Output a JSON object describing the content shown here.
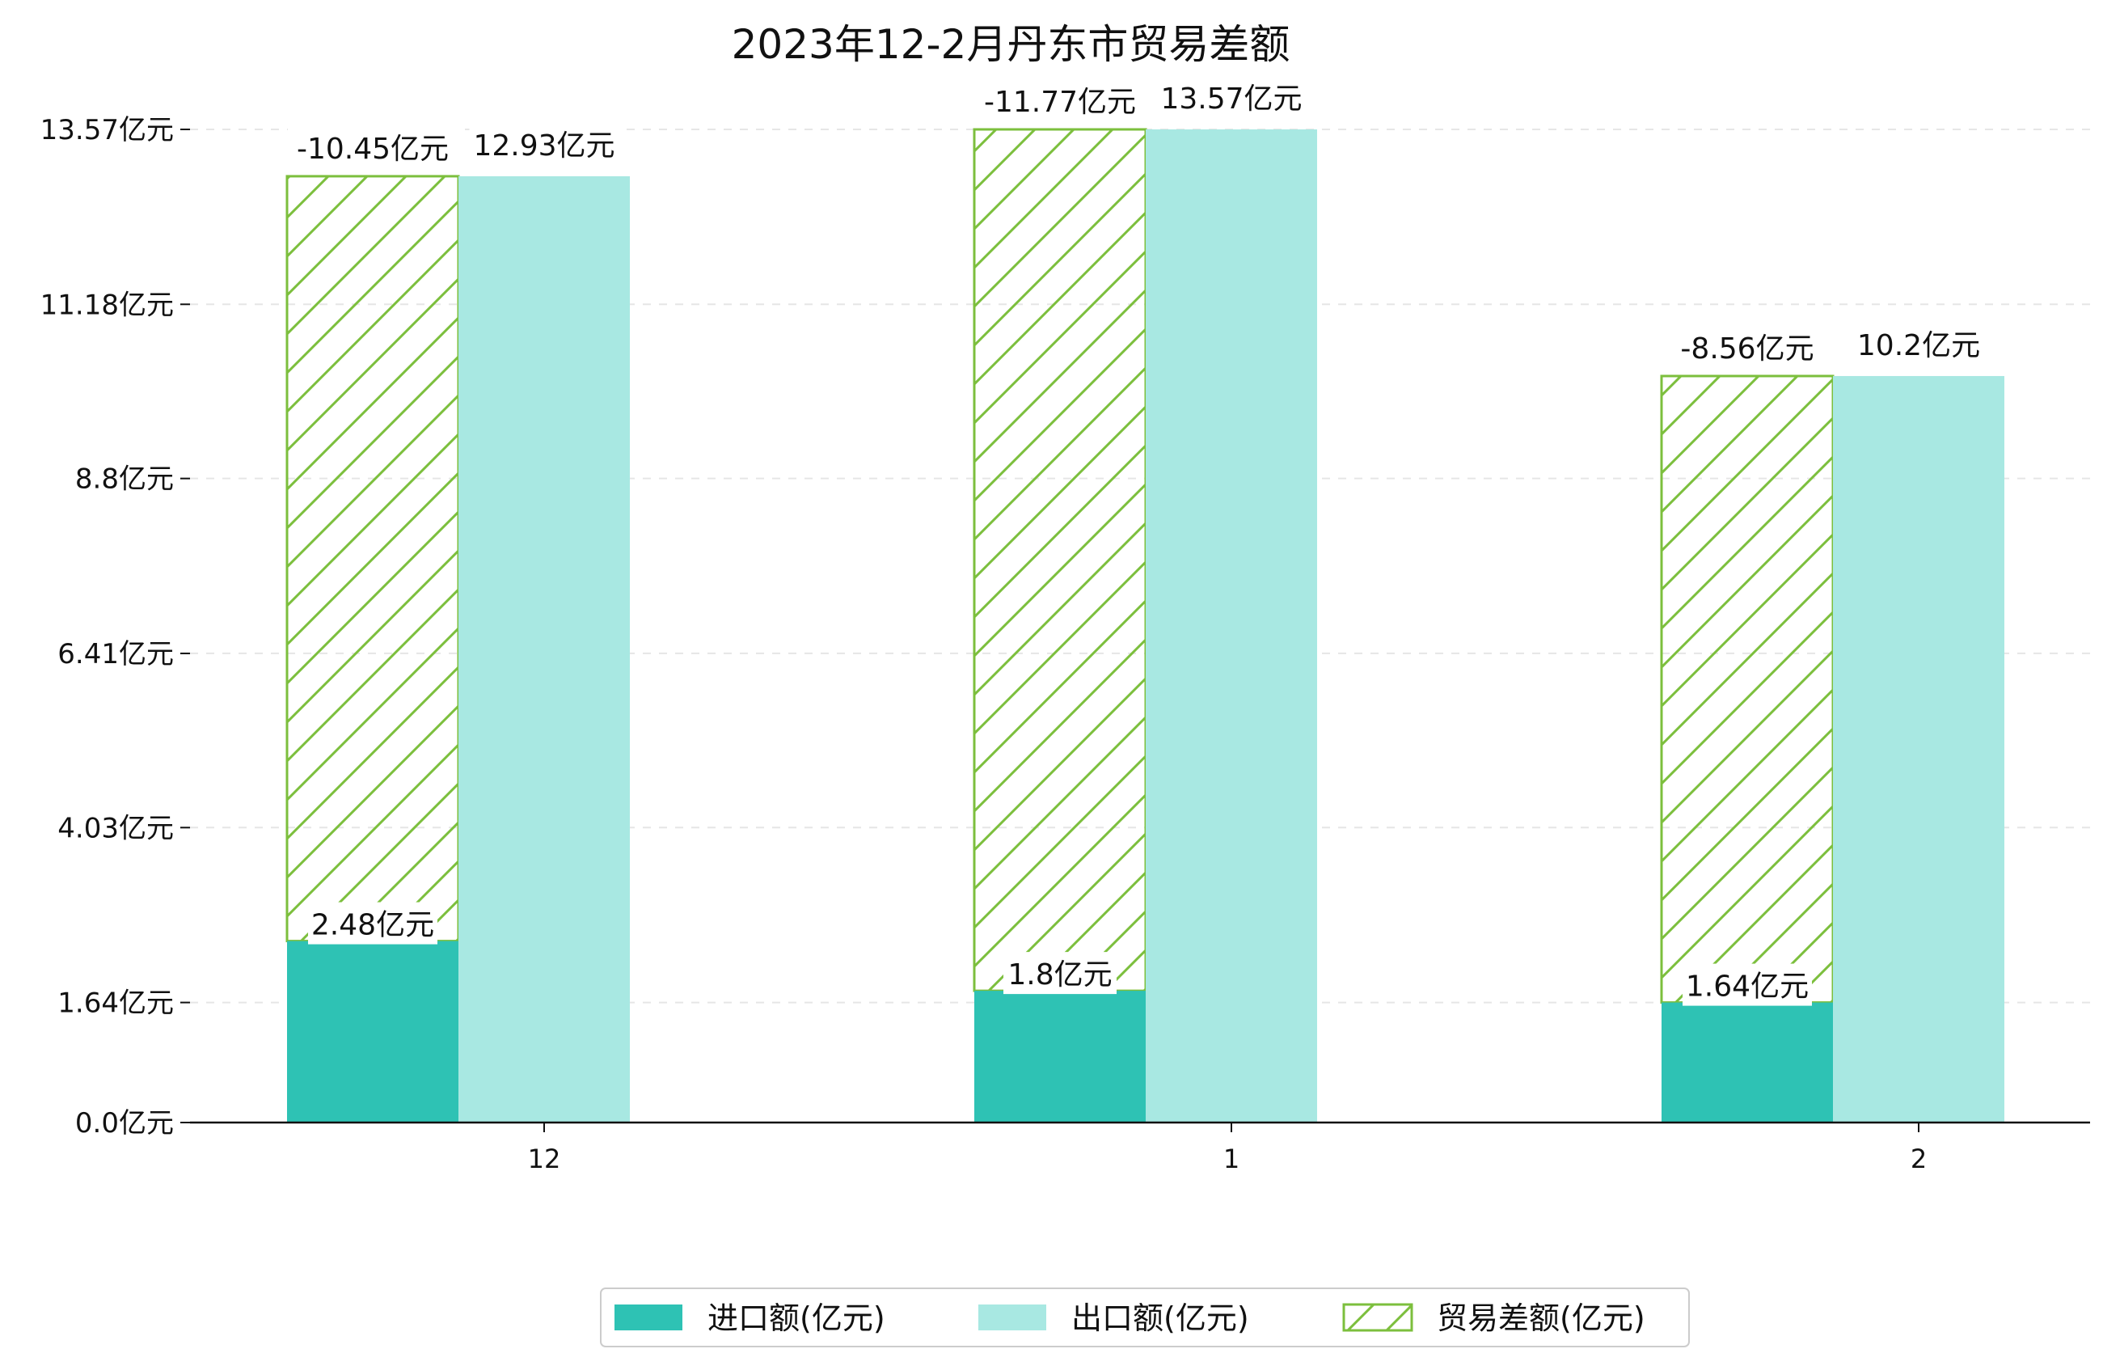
{
  "chart_data": {
    "type": "bar",
    "title": "2023年12-2月丹东市贸易差额",
    "xlabel": "",
    "ylabel": "",
    "categories": [
      "12",
      "1",
      "2"
    ],
    "ylim": [
      0,
      13.57
    ],
    "yticks": [
      {
        "value": 0.0,
        "label": "0.0亿元"
      },
      {
        "value": 1.64,
        "label": "1.64亿元"
      },
      {
        "value": 4.03,
        "label": "4.03亿元"
      },
      {
        "value": 6.41,
        "label": "6.41亿元"
      },
      {
        "value": 8.8,
        "label": "8.8亿元"
      },
      {
        "value": 11.18,
        "label": "11.18亿元"
      },
      {
        "value": 13.57,
        "label": "13.57亿元"
      }
    ],
    "grid": "horizontal-dashed",
    "legend_position": "bottom-center",
    "series": [
      {
        "name": "进口额(亿元)",
        "color": "#2ec2b4",
        "values": [
          2.48,
          1.8,
          1.64
        ],
        "labels": [
          "2.48亿元",
          "1.8亿元",
          "1.64亿元"
        ]
      },
      {
        "name": "出口额(亿元)",
        "color": "#a8e8e2",
        "values": [
          12.93,
          13.57,
          10.2
        ],
        "labels": [
          "12.93亿元",
          "13.57亿元",
          "10.2亿元"
        ]
      },
      {
        "name": "贸易差额(亿元)",
        "color": "#7cbf3d",
        "hatch": "diagonal",
        "values": [
          -10.45,
          -11.77,
          -8.56
        ],
        "labels": [
          "-10.45亿元",
          "-11.77亿元",
          "-8.56亿元"
        ]
      }
    ]
  }
}
